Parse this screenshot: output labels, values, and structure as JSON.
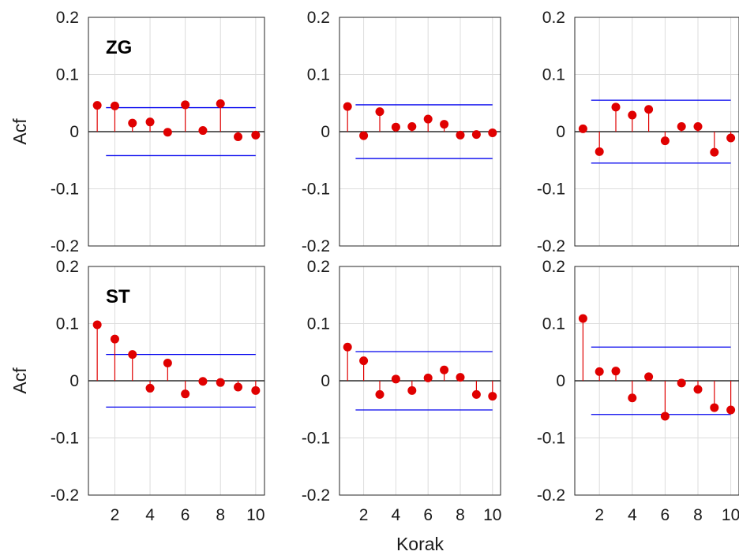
{
  "chart_data": {
    "type": "scatter",
    "style": "stem",
    "xlabel": "Korak",
    "ylabel": "Acf",
    "ylim": [
      -0.2,
      0.2
    ],
    "xlim": [
      0.5,
      10.5
    ],
    "yticks": [
      -0.2,
      -0.1,
      0,
      0.1,
      0.2
    ],
    "ytick_labels": [
      "-0.2",
      "-0.1",
      "0",
      "0.1",
      "0.2"
    ],
    "xticks": [
      2,
      4,
      6,
      8,
      10
    ],
    "xtick_labels": [
      "2",
      "4",
      "6",
      "8",
      "10"
    ],
    "grid": true,
    "colors": {
      "stem": "#e00000",
      "confidence": "#0000ee",
      "zero": "#000000",
      "grid": "#dcdcdc",
      "frame": "#262626"
    },
    "panels": [
      {
        "row": 0,
        "col": 0,
        "tag": "ZG",
        "conf": 0.042,
        "conf_start": 1.5,
        "lags": [
          1,
          2,
          3,
          4,
          5,
          6,
          7,
          8,
          9,
          10
        ],
        "values": [
          0.046,
          0.045,
          0.015,
          0.017,
          -0.001,
          0.047,
          0.002,
          0.049,
          -0.009,
          -0.006
        ]
      },
      {
        "row": 0,
        "col": 1,
        "tag": "",
        "conf": 0.047,
        "conf_start": 1.5,
        "lags": [
          1,
          2,
          3,
          4,
          5,
          6,
          7,
          8,
          9,
          10
        ],
        "values": [
          0.044,
          -0.007,
          0.035,
          0.008,
          0.009,
          0.022,
          0.013,
          -0.006,
          -0.005,
          -0.002
        ]
      },
      {
        "row": 0,
        "col": 2,
        "tag": "",
        "conf": 0.055,
        "conf_start": 1.5,
        "lags": [
          1,
          2,
          3,
          4,
          5,
          6,
          7,
          8,
          9,
          10
        ],
        "values": [
          0.005,
          -0.035,
          0.043,
          0.029,
          0.039,
          -0.016,
          0.009,
          0.009,
          -0.036,
          -0.011
        ]
      },
      {
        "row": 1,
        "col": 0,
        "tag": "ST",
        "conf": 0.046,
        "conf_start": 1.5,
        "lags": [
          1,
          2,
          3,
          4,
          5,
          6,
          7,
          8,
          9,
          10
        ],
        "values": [
          0.098,
          0.073,
          0.046,
          -0.013,
          0.031,
          -0.023,
          -0.001,
          -0.003,
          -0.011,
          -0.017
        ]
      },
      {
        "row": 1,
        "col": 1,
        "tag": "",
        "conf": 0.051,
        "conf_start": 1.5,
        "lags": [
          1,
          2,
          3,
          4,
          5,
          6,
          7,
          8,
          9,
          10
        ],
        "values": [
          0.059,
          0.035,
          -0.024,
          0.003,
          -0.017,
          0.005,
          0.019,
          0.006,
          -0.024,
          -0.027
        ]
      },
      {
        "row": 1,
        "col": 2,
        "tag": "",
        "conf": 0.059,
        "conf_start": 1.5,
        "lags": [
          1,
          2,
          3,
          4,
          5,
          6,
          7,
          8,
          9,
          10
        ],
        "values": [
          0.109,
          0.016,
          0.017,
          -0.03,
          0.007,
          -0.062,
          -0.004,
          -0.015,
          -0.047,
          -0.051
        ]
      }
    ]
  }
}
